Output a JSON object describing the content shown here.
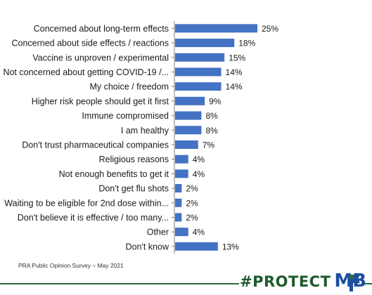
{
  "chart_data": {
    "type": "bar",
    "orientation": "horizontal",
    "categories": [
      "Concerned about long-term effects",
      "Concerned about side effects / reactions",
      "Vaccine is unproven / experimental",
      "Not concerned about getting COVID-19 /...",
      "My choice / freedom",
      "Higher risk people should get it first",
      "Immune compromised",
      "I am healthy",
      "Don't trust pharmaceutical companies",
      "Religious reasons",
      "Not enough benefits to get it",
      "Don't get flu shots",
      "Waiting to be eligible for 2nd dose within...",
      "Don't believe it is effective / too many...",
      "Other",
      "Don't know"
    ],
    "values": [
      25,
      18,
      15,
      14,
      14,
      9,
      8,
      8,
      7,
      4,
      4,
      2,
      2,
      2,
      4,
      13
    ],
    "value_suffix": "%",
    "bar_color": "#4472c4",
    "xlim": [
      0,
      28
    ],
    "grid": false,
    "legend": "none"
  },
  "footnote": "PRA Public Opinion Survey – May 2021",
  "brand": {
    "part1": "#PROTECT",
    "part2": "MB",
    "green": "#1f5a2c",
    "blue": "#1d4fa0",
    "icon": "manitoba-flag-icon"
  }
}
